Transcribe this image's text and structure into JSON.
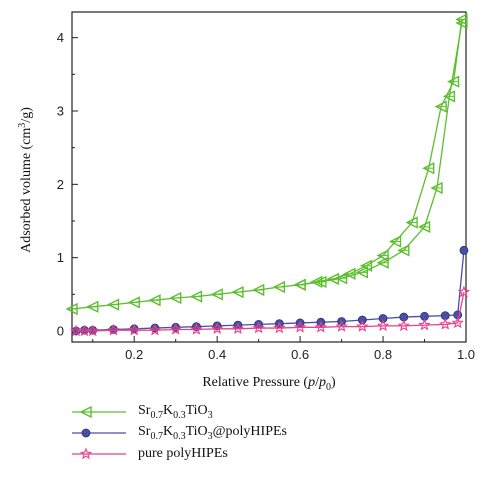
{
  "chart_data": {
    "type": "line",
    "xlabel": "Relative Pressure (p/p0)",
    "ylabel": "Adsorbed volume (cm3/g)",
    "xlim": [
      0.05,
      1.0
    ],
    "ylim": [
      -0.15,
      4.35
    ],
    "xticks": [
      "0.2",
      "0.4",
      "0.6",
      "0.8",
      "1.0"
    ],
    "yticks": [
      "0",
      "1",
      "2",
      "3",
      "4"
    ],
    "grid": false,
    "legend_placement": "below-left",
    "series": [
      {
        "name": "Sr0.7K0.3TiO3",
        "color": "#5cbf2e",
        "marker": "triangle-left",
        "adsorption": {
          "x": [
            0.05,
            0.1,
            0.15,
            0.2,
            0.25,
            0.3,
            0.35,
            0.4,
            0.45,
            0.5,
            0.55,
            0.6,
            0.65,
            0.7,
            0.75,
            0.8,
            0.85,
            0.9,
            0.93,
            0.96,
            0.99
          ],
          "y": [
            0.3,
            0.33,
            0.36,
            0.39,
            0.42,
            0.45,
            0.47,
            0.5,
            0.53,
            0.56,
            0.6,
            0.63,
            0.67,
            0.72,
            0.8,
            0.93,
            1.1,
            1.42,
            1.95,
            3.2,
            4.2
          ]
        },
        "desorption": {
          "x": [
            0.99,
            0.97,
            0.94,
            0.91,
            0.87,
            0.83,
            0.8,
            0.76,
            0.72,
            0.68,
            0.64,
            0.6
          ],
          "y": [
            4.25,
            3.4,
            3.06,
            2.22,
            1.48,
            1.22,
            1.03,
            0.89,
            0.78,
            0.71,
            0.67,
            0.63
          ]
        }
      },
      {
        "name": "Sr0.7K0.3TiO3@polyHIPEs",
        "color": "#4a4fa5",
        "marker": "circle",
        "adsorption": {
          "x": [
            0.06,
            0.08,
            0.1,
            0.15,
            0.2,
            0.25,
            0.3,
            0.35,
            0.4,
            0.45,
            0.5,
            0.55,
            0.6,
            0.65,
            0.7,
            0.75,
            0.8,
            0.85,
            0.9,
            0.95,
            0.98,
            0.995
          ],
          "y": [
            0.0,
            0.01,
            0.01,
            0.02,
            0.03,
            0.04,
            0.05,
            0.06,
            0.07,
            0.08,
            0.09,
            0.1,
            0.11,
            0.12,
            0.13,
            0.15,
            0.17,
            0.19,
            0.2,
            0.21,
            0.22,
            1.1
          ]
        }
      },
      {
        "name": "pure polyHIPEs",
        "color": "#e8418a",
        "marker": "star",
        "adsorption": {
          "x": [
            0.06,
            0.08,
            0.1,
            0.15,
            0.2,
            0.25,
            0.3,
            0.35,
            0.4,
            0.45,
            0.5,
            0.55,
            0.6,
            0.65,
            0.7,
            0.75,
            0.8,
            0.85,
            0.9,
            0.95,
            0.98,
            0.995
          ],
          "y": [
            0.0,
            0.0,
            0.0,
            0.01,
            0.01,
            0.01,
            0.02,
            0.02,
            0.03,
            0.03,
            0.04,
            0.04,
            0.05,
            0.05,
            0.06,
            0.06,
            0.07,
            0.07,
            0.08,
            0.09,
            0.11,
            0.53
          ]
        }
      }
    ]
  },
  "legend": {
    "items": [
      {
        "main": "Sr",
        "s1": "0.7",
        "k": "K",
        "s2": "0.3",
        "tio": "TiO",
        "s3": "3",
        "suffix": ""
      },
      {
        "main": "Sr",
        "s1": "0.7",
        "k": "K",
        "s2": "0.3",
        "tio": "TiO",
        "s3": "3",
        "suffix": "@polyHIPEs"
      },
      {
        "plain": "pure polyHIPEs"
      }
    ]
  },
  "axis_text": {
    "x_prefix": "Relative Pressure (",
    "x_p": "p",
    "x_slash": "/",
    "x_p0": "p",
    "x_sub0": "0",
    "x_suffix": ")",
    "y_prefix": "Adsorbed volume (cm",
    "y_sup": "3",
    "y_suffix": "/g)"
  }
}
